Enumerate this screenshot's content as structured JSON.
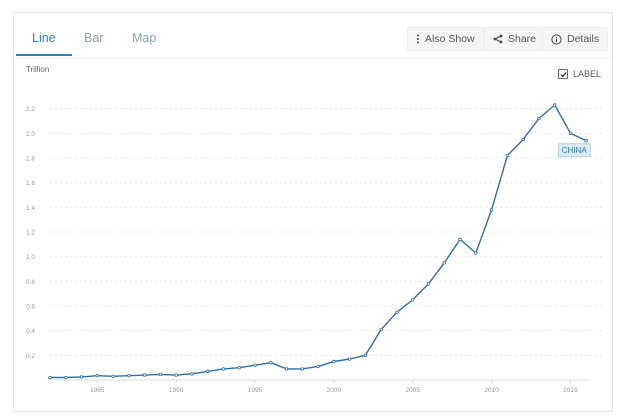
{
  "tabs": [
    {
      "label": "Line",
      "active": true
    },
    {
      "label": "Bar",
      "active": false
    },
    {
      "label": "Map",
      "active": false
    }
  ],
  "toolbar": {
    "also_show_label": "Also Show",
    "share_label": "Share",
    "details_label": "Details",
    "also_show_icon": "vertical-ellipsis-icon",
    "share_icon": "share-icon",
    "details_icon": "info-icon"
  },
  "unit_label": "Trillion",
  "label_toggle": {
    "label": "LABEL",
    "checked": true
  },
  "colors": {
    "accent": "#2a83bf",
    "line": "#2f6fa8",
    "grid": "#e3e6ea",
    "tag_bg": "#dcebf6"
  },
  "chart_data": {
    "type": "line",
    "title": "",
    "xlabel": "",
    "ylabel": "Trillion",
    "xlim": [
      1982,
      2017
    ],
    "ylim": [
      0,
      2.4
    ],
    "x_ticks": [
      1985,
      1990,
      1995,
      2000,
      2005,
      2010,
      2015
    ],
    "y_ticks": [
      0.2,
      0.4,
      0.6,
      0.8,
      1.0,
      1.2,
      1.4,
      1.6,
      1.8,
      2.0,
      2.2
    ],
    "grid": true,
    "series": [
      {
        "name": "CHINA",
        "x": [
          1982,
          1983,
          1984,
          1985,
          1986,
          1987,
          1988,
          1989,
          1990,
          1991,
          1992,
          1993,
          1994,
          1995,
          1996,
          1997,
          1998,
          1999,
          2000,
          2001,
          2002,
          2003,
          2004,
          2005,
          2006,
          2007,
          2008,
          2009,
          2010,
          2011,
          2012,
          2013,
          2014,
          2015,
          2016
        ],
        "values": [
          0.02,
          0.02,
          0.025,
          0.035,
          0.03,
          0.035,
          0.04,
          0.045,
          0.04,
          0.05,
          0.07,
          0.09,
          0.1,
          0.12,
          0.14,
          0.09,
          0.09,
          0.11,
          0.15,
          0.17,
          0.2,
          0.41,
          0.55,
          0.65,
          0.78,
          0.95,
          1.14,
          1.03,
          1.38,
          1.82,
          1.95,
          2.12,
          2.23,
          2.0,
          1.94
        ]
      }
    ]
  }
}
